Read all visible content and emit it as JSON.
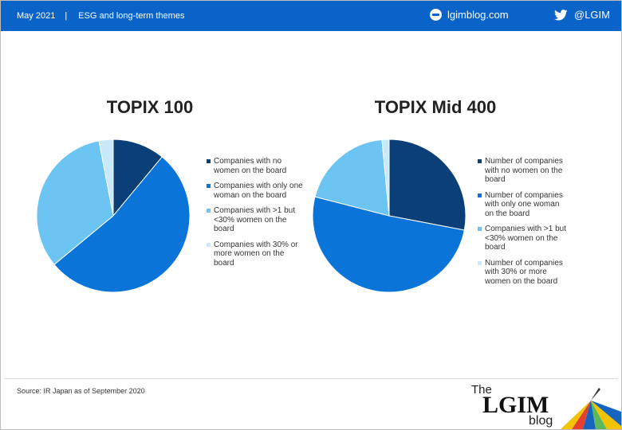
{
  "header": {
    "date": "May 2021",
    "separator": "|",
    "section": "ESG and long-term themes",
    "site": "lgimblog.com",
    "twitter": "@LGIM",
    "bar_color": "#0a63c9"
  },
  "chart_data": [
    {
      "type": "pie",
      "title": "TOPIX 100",
      "slices": [
        {
          "label": "Companies with no women on the board",
          "value": 11,
          "color": "#0b3f77"
        },
        {
          "label": "Companies with only one woman on the board",
          "value": 53,
          "color": "#0a74d9"
        },
        {
          "label": "Companies with >1 but <30% women on the board",
          "value": 33,
          "color": "#6bc4f2"
        },
        {
          "label": "Companies with 30% or more women on the board",
          "value": 3,
          "color": "#c8e9fa"
        }
      ]
    },
    {
      "type": "pie",
      "title": "TOPIX Mid 400",
      "slices": [
        {
          "label": "Number of companies with no women on the board",
          "value": 28,
          "color": "#0b3f77"
        },
        {
          "label": "Number of companies with only one woman on the board",
          "value": 51,
          "color": "#0a74d9"
        },
        {
          "label": "Companies with >1 but <30% women on the board",
          "value": 19.5,
          "color": "#6bc4f2"
        },
        {
          "label": "Number of companies with 30% or more women on the board",
          "value": 1.5,
          "color": "#c8e9fa"
        }
      ]
    }
  ],
  "footer": {
    "source": "Source: IR Japan as of September 2020",
    "logo_the": "The",
    "logo_main": "LGIM",
    "logo_blog": "blog"
  }
}
